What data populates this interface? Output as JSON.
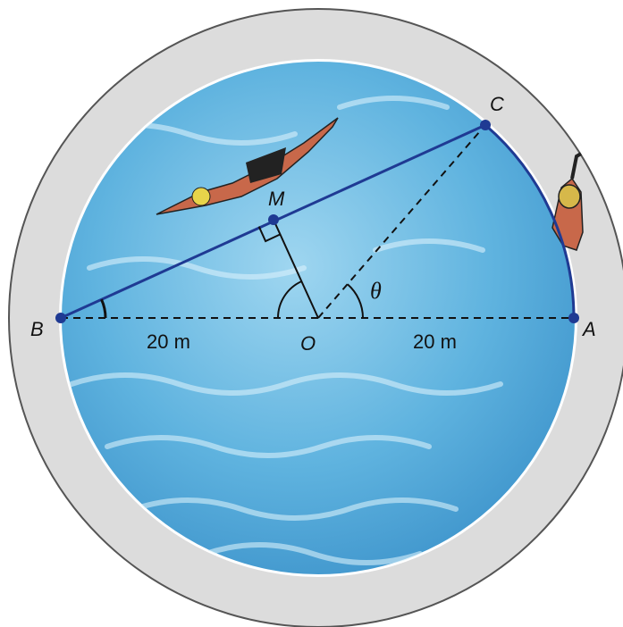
{
  "labels": {
    "C": "C",
    "M": "M",
    "B": "B",
    "O": "O",
    "A": "A",
    "theta": "θ",
    "left_distance": "20 m",
    "right_distance": "20 m"
  }
}
